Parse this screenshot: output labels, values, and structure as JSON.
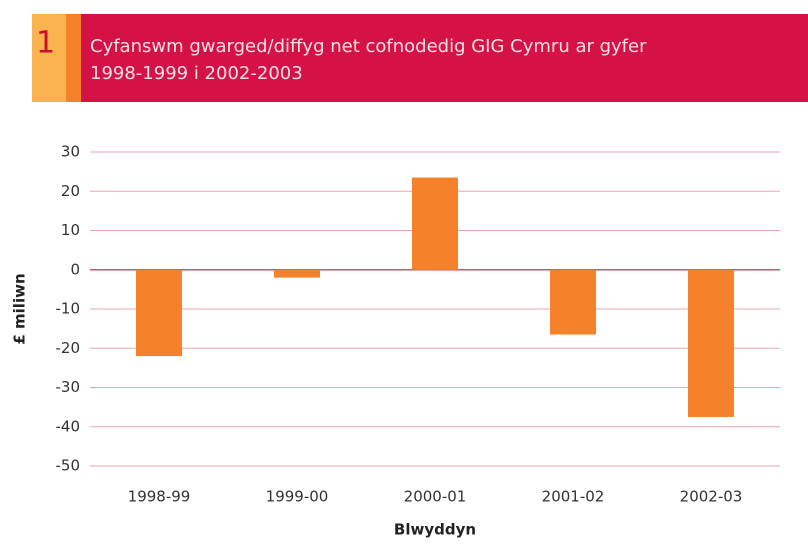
{
  "chart_data": {
    "type": "bar",
    "number": "1",
    "title": [
      "Cyfanswm gwarged/diffyg net cofnodedig GIG Cymru ar gyfer",
      "1998-1999 i 2002-2003"
    ],
    "x_label": "Blwyddyn",
    "y_label": "£ miliwn",
    "categories": [
      "1998-99",
      "1999-00",
      "2000-01",
      "2001-02",
      "2002-03"
    ],
    "values": [
      -22,
      -2,
      23.5,
      -16.5,
      -37.5
    ],
    "color": "#f5822a",
    "ylim": [
      -50,
      30
    ],
    "yticks": [
      -50,
      -40,
      -30,
      -20,
      -10,
      0,
      10,
      20,
      30
    ],
    "grid": true
  }
}
